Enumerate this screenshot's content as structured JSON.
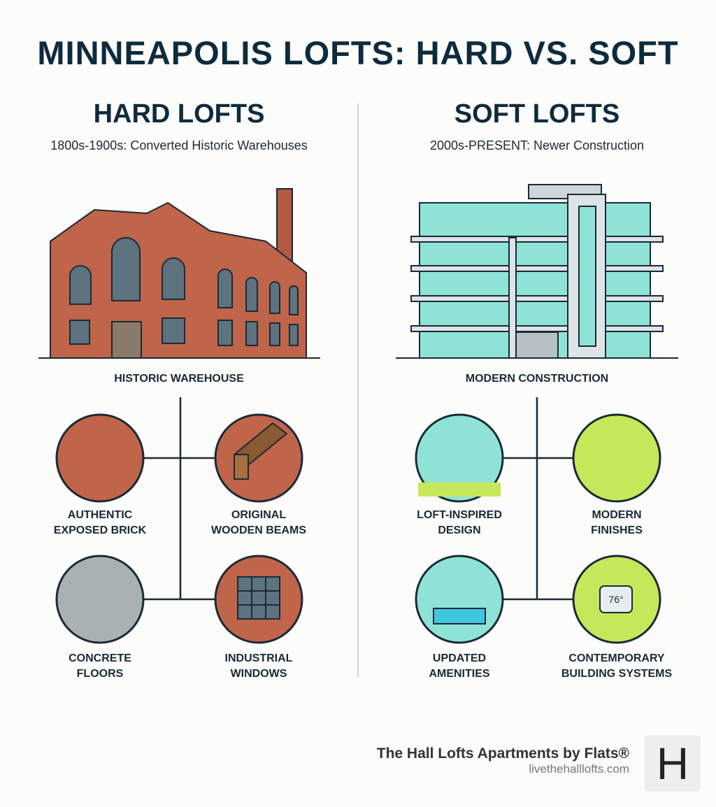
{
  "title": "MINNEAPOLIS LOFTS: HARD VS. SOFT",
  "hard": {
    "heading": "HARD LOFTS",
    "subtitle": "1800s-1900s: Converted Historic Warehouses",
    "caption": "HISTORIC WAREHOUSE",
    "features": [
      [
        "AUTHENTIC",
        "EXPOSED BRICK"
      ],
      [
        "ORIGINAL",
        "WOODEN BEAMS"
      ],
      [
        "CONCRETE",
        "FLOORS"
      ],
      [
        "INDUSTRIAL",
        "WINDOWS"
      ]
    ]
  },
  "soft": {
    "heading": "SOFT LOFTS",
    "subtitle": "2000s-PRESENT: Newer Construction",
    "caption": "MODERN CONSTRUCTION",
    "features": [
      [
        "LOFT-INSPIRED",
        "DESIGN"
      ],
      [
        "MODERN",
        "FINISHES"
      ],
      [
        "UPDATED",
        "AMENITIES"
      ],
      [
        "CONTEMPORARY",
        "BUILDING SYSTEMS"
      ]
    ],
    "thermostat": "76°"
  },
  "footer": {
    "brand": "The Hall Lofts Apartments by Flats®",
    "url": "livethehalllofts.com",
    "logo": "H"
  },
  "colors": {
    "navy": "#0e2b3d",
    "brick": "#c0644a",
    "glass": "#8fe3d6",
    "lime": "#c5e85a"
  }
}
